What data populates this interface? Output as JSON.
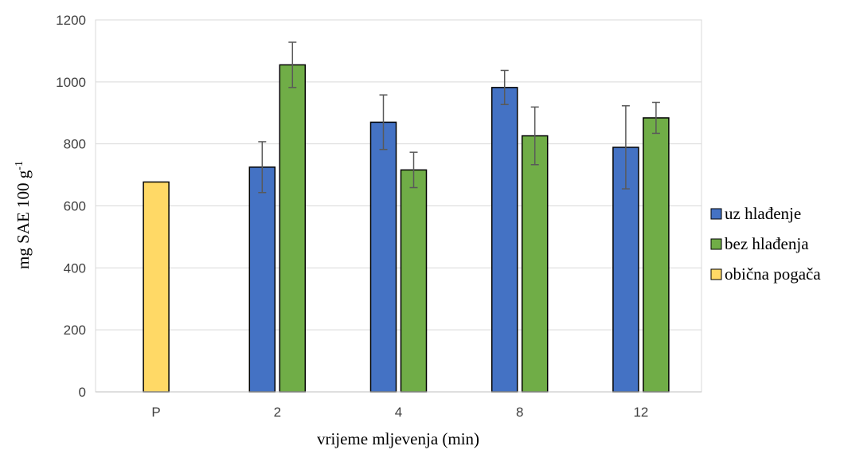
{
  "chart_data": {
    "type": "bar",
    "xlabel": "vrijeme mljevenja (min)",
    "ylabel": {
      "main": "mg SAE 100 g",
      "sup": "-1"
    },
    "ylim": [
      0,
      1200
    ],
    "yticks": [
      0,
      200,
      400,
      600,
      800,
      1000,
      1200
    ],
    "grid": true,
    "legend_position": "right",
    "categories": [
      "P",
      "2",
      "4",
      "8",
      "12"
    ],
    "series": [
      {
        "name": "uz hlađenje",
        "color": "#4472C4",
        "values": [
          null,
          725,
          870,
          982,
          789
        ],
        "errors": [
          null,
          82,
          88,
          55,
          134
        ]
      },
      {
        "name": "bez hlađenja",
        "color": "#70AD47",
        "values": [
          null,
          1055,
          716,
          826,
          884
        ],
        "errors": [
          null,
          73,
          57,
          93,
          50
        ]
      },
      {
        "name": "obična pogača",
        "color": "#FFD966",
        "values": [
          677,
          null,
          null,
          null,
          null
        ],
        "errors": [
          null,
          null,
          null,
          null,
          null
        ]
      }
    ]
  }
}
